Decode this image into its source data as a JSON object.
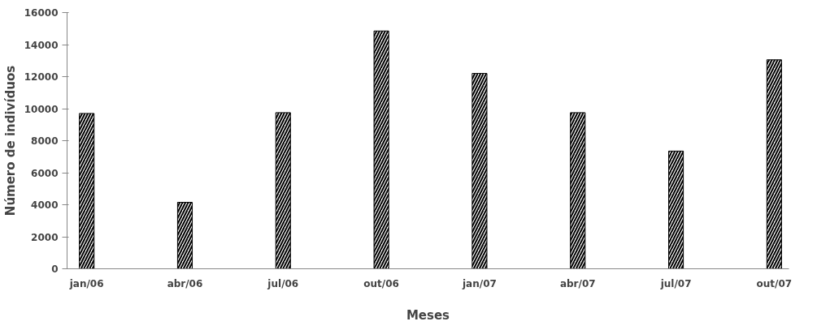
{
  "chart_data": {
    "type": "bar",
    "xlabel": "Meses",
    "ylabel": "Número de indivíduos",
    "categories": [
      "jan/06",
      "abr/06",
      "jul/06",
      "out/06",
      "jan/07",
      "abr/07",
      "jul/07",
      "out/07"
    ],
    "series": [
      {
        "color": "#000000",
        "values": [
          9700,
          4150,
          9750,
          14850,
          12200,
          9750,
          7350,
          13050
        ]
      }
    ],
    "ylim": [
      0,
      16000
    ],
    "yticks": [
      0,
      2000,
      4000,
      6000,
      8000,
      10000,
      12000,
      14000,
      16000
    ],
    "grid": false
  }
}
